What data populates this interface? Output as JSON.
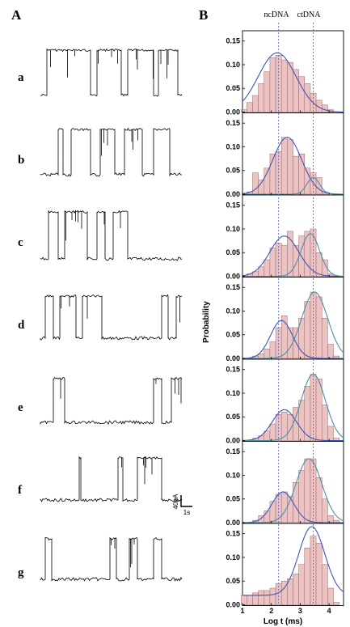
{
  "panel_a_label": "A",
  "panel_b_label": "B",
  "row_labels": [
    "a",
    "b",
    "c",
    "d",
    "e",
    "f",
    "g"
  ],
  "scale_bar": {
    "current": "40pA",
    "time": "1s"
  },
  "reference_lines": [
    {
      "label": "ncDNA",
      "x": 2.25
    },
    {
      "label": "ctDNA",
      "x": 3.45
    }
  ],
  "colors": {
    "bar_fill": "#ebc3c3",
    "bar_edge": "#a06464",
    "fit_curve": "#3d55b8",
    "fit_curve_alt": "#4a8fa8",
    "ref_line": "#5a6fd0",
    "trace": "#000000"
  },
  "chart_data": {
    "type": "bar",
    "shared_axes": {
      "xlabel": "Log t (ms)",
      "ylabel": "Probability",
      "xlim": [
        1,
        4.5
      ],
      "ylim": [
        0,
        0.17
      ],
      "xticks": [
        1,
        2,
        3,
        4
      ],
      "yticks": [
        "0.00",
        "0.05",
        "0.10",
        "0.15"
      ]
    },
    "bin_centers": [
      1.05,
      1.25,
      1.45,
      1.65,
      1.85,
      2.05,
      2.25,
      2.45,
      2.65,
      2.85,
      3.05,
      3.25,
      3.45,
      3.65,
      3.85,
      4.05,
      4.25
    ],
    "subplots": [
      {
        "row": "a",
        "values": [
          0.005,
          0.02,
          0.035,
          0.06,
          0.085,
          0.115,
          0.12,
          0.11,
          0.105,
          0.09,
          0.075,
          0.06,
          0.04,
          0.025,
          0.015,
          0.005,
          0
        ],
        "fits": [
          {
            "amp": 0.125,
            "mu": 2.2,
            "sigma": 0.65
          }
        ]
      },
      {
        "row": "b",
        "values": [
          0,
          0.005,
          0.045,
          0.03,
          0.055,
          0.085,
          0.09,
          0.12,
          0.115,
          0.08,
          0.085,
          0.055,
          0.045,
          0.035,
          0.005,
          0,
          0
        ],
        "fits": [
          {
            "amp": 0.12,
            "mu": 2.55,
            "sigma": 0.5
          },
          {
            "amp": 0.035,
            "mu": 3.45,
            "sigma": 0.22
          }
        ]
      },
      {
        "row": "c",
        "values": [
          0,
          0.005,
          0.01,
          0.02,
          0.035,
          0.06,
          0.07,
          0.065,
          0.095,
          0.065,
          0.085,
          0.095,
          0.1,
          0.05,
          0.035,
          0.005,
          0
        ],
        "fits": [
          {
            "amp": 0.085,
            "mu": 2.45,
            "sigma": 0.5
          },
          {
            "amp": 0.09,
            "mu": 3.35,
            "sigma": 0.32
          }
        ]
      },
      {
        "row": "d",
        "values": [
          0,
          0,
          0.005,
          0.01,
          0.02,
          0.035,
          0.065,
          0.09,
          0.065,
          0.065,
          0.085,
          0.12,
          0.14,
          0.13,
          0.085,
          0.03,
          0.005
        ],
        "fits": [
          {
            "amp": 0.08,
            "mu": 2.35,
            "sigma": 0.38
          },
          {
            "amp": 0.14,
            "mu": 3.5,
            "sigma": 0.45
          }
        ]
      },
      {
        "row": "e",
        "values": [
          0,
          0,
          0.005,
          0.01,
          0.02,
          0.035,
          0.055,
          0.06,
          0.055,
          0.07,
          0.085,
          0.115,
          0.14,
          0.13,
          0.075,
          0.03,
          0.005
        ],
        "fits": [
          {
            "amp": 0.065,
            "mu": 2.45,
            "sigma": 0.42
          },
          {
            "amp": 0.14,
            "mu": 3.45,
            "sigma": 0.42
          }
        ]
      },
      {
        "row": "f",
        "values": [
          0,
          0,
          0.005,
          0.015,
          0.025,
          0.045,
          0.06,
          0.065,
          0.055,
          0.085,
          0.11,
          0.135,
          0.135,
          0.095,
          0.05,
          0.015,
          0.005
        ],
        "fits": [
          {
            "amp": 0.065,
            "mu": 2.4,
            "sigma": 0.38
          },
          {
            "amp": 0.135,
            "mu": 3.3,
            "sigma": 0.45
          }
        ]
      },
      {
        "row": "g",
        "values": [
          0.02,
          0.02,
          0.025,
          0.03,
          0.03,
          0.035,
          0.045,
          0.05,
          0.055,
          0.065,
          0.085,
          0.12,
          0.145,
          0.13,
          0.085,
          0.035,
          0.005
        ],
        "fits": [
          {
            "amp": 0.145,
            "mu": 3.4,
            "sigma": 0.45,
            "baseline": 0.02
          }
        ]
      }
    ]
  }
}
